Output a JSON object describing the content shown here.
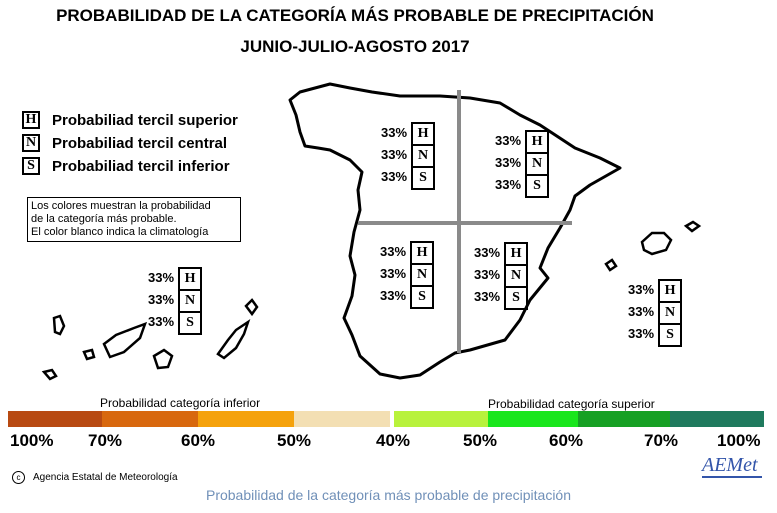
{
  "title": {
    "line1": "PROBABILIDAD DE LA CATEGORÍA MÁS PROBABLE DE PRECIPITACIÓN",
    "line2": "JUNIO-JULIO-AGOSTO 2017"
  },
  "legend": {
    "items": [
      {
        "letter": "H",
        "label": "Probabiliad tercil superior"
      },
      {
        "letter": "N",
        "label": "Probabiliad tercil central"
      },
      {
        "letter": "S",
        "label": "Probabiliad tercil inferior"
      }
    ],
    "note": [
      "Los colores muestran la probabilidad",
      "de la categoría más probable.",
      "El color blanco indica la climatología"
    ]
  },
  "regions": [
    {
      "id": "north-west",
      "pcts": [
        "33%",
        "33%",
        "33%"
      ],
      "cats": [
        "H",
        "N",
        "S"
      ]
    },
    {
      "id": "north-east",
      "pcts": [
        "33%",
        "33%",
        "33%"
      ],
      "cats": [
        "H",
        "N",
        "S"
      ]
    },
    {
      "id": "south-west",
      "pcts": [
        "33%",
        "33%",
        "33%"
      ],
      "cats": [
        "H",
        "N",
        "S"
      ]
    },
    {
      "id": "south-east",
      "pcts": [
        "33%",
        "33%",
        "33%"
      ],
      "cats": [
        "H",
        "N",
        "S"
      ]
    },
    {
      "id": "canarias",
      "pcts": [
        "33%",
        "33%",
        "33%"
      ],
      "cats": [
        "H",
        "N",
        "S"
      ]
    },
    {
      "id": "baleares",
      "pcts": [
        "33%",
        "33%",
        "33%"
      ],
      "cats": [
        "H",
        "N",
        "S"
      ]
    }
  ],
  "scale": {
    "lower_label": "Probabilidad categoría inferior",
    "upper_label": "Probabilidad categoría superior",
    "ticks": [
      "100%",
      "70%",
      "60%",
      "50%",
      "40%",
      "50%",
      "60%",
      "70%",
      "100%"
    ],
    "colors": [
      "#b84a12",
      "#d8680e",
      "#f5a20c",
      "#f3dfb3",
      "#ffffff",
      "#b8f23c",
      "#19e61c",
      "#16a024",
      "#1f7a5e"
    ]
  },
  "colors": {
    "land": "#ffffff",
    "outline": "#000000",
    "divider": "#8a8a8a",
    "footer_text": "#7090b8"
  },
  "credit": "Agencia Estatal de Meteorología",
  "logo_text": "AEMet",
  "footer": "Probabilidad de la categoría más probable de precipitación"
}
